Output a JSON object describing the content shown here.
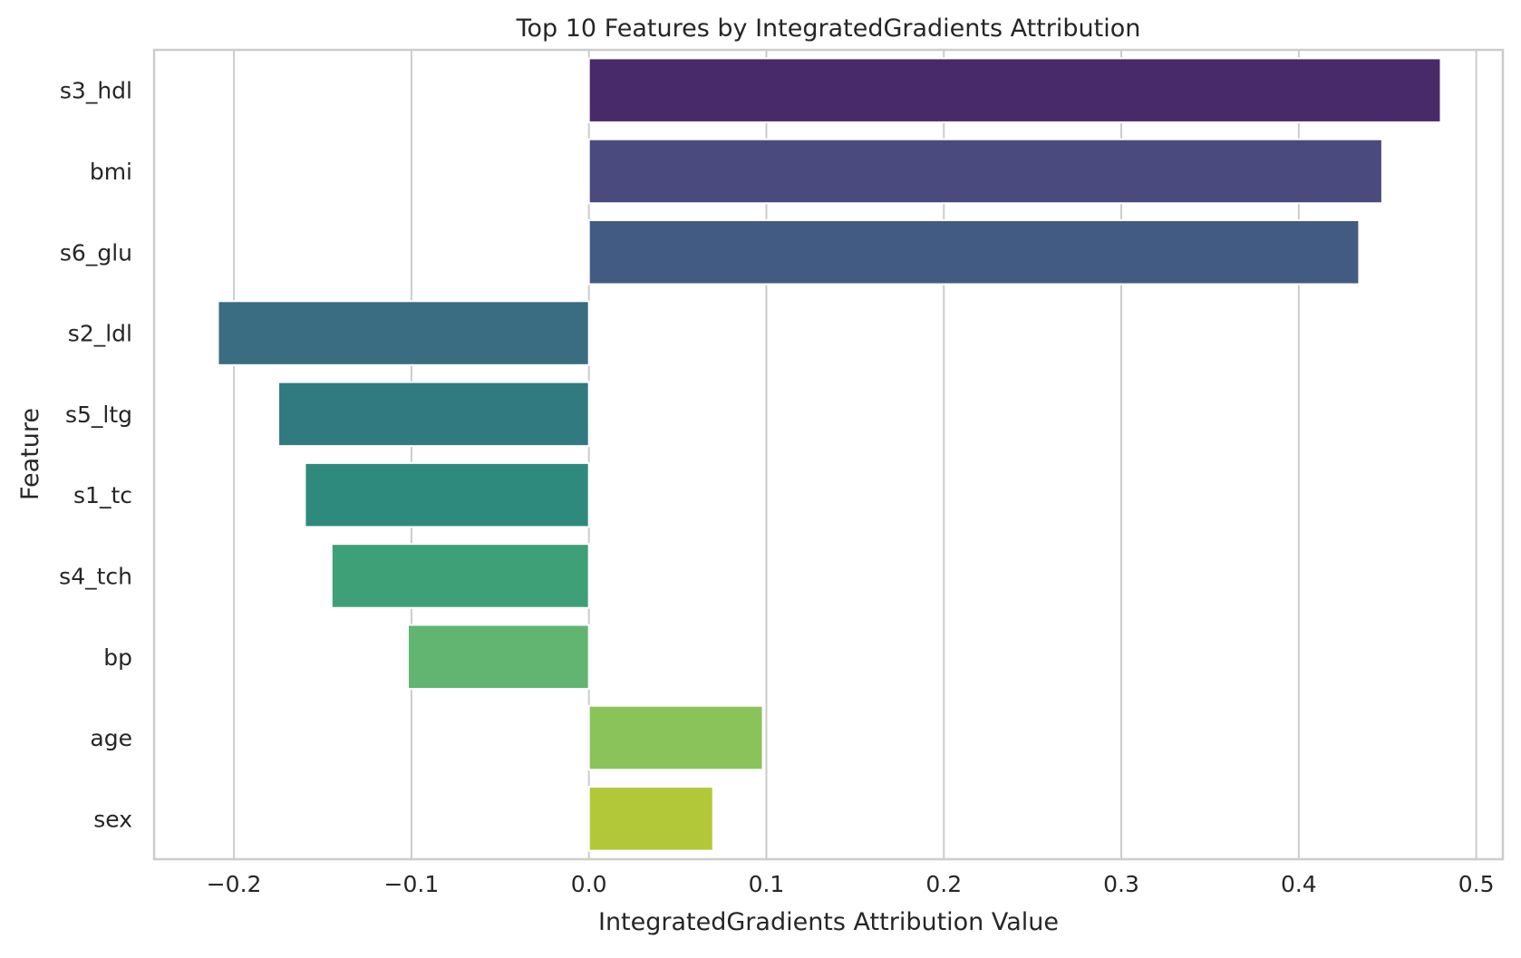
{
  "chart_data": {
    "type": "bar",
    "orientation": "horizontal",
    "title": "Top 10 Features by IntegratedGradients Attribution",
    "xlabel": "IntegratedGradients Attribution Value",
    "ylabel": "Feature",
    "xlim": [
      -0.245,
      0.515
    ],
    "xticks": [
      -0.2,
      -0.1,
      0.0,
      0.1,
      0.2,
      0.3,
      0.4,
      0.5
    ],
    "xtick_labels": [
      "−0.2",
      "−0.1",
      "0.0",
      "0.1",
      "0.2",
      "0.3",
      "0.4",
      "0.5"
    ],
    "grid": true,
    "categories": [
      "s3_hdl",
      "bmi",
      "s6_glu",
      "s2_ldl",
      "s5_ltg",
      "s1_tc",
      "s4_tch",
      "bp",
      "age",
      "sex"
    ],
    "values": [
      0.48,
      0.447,
      0.434,
      -0.209,
      -0.175,
      -0.16,
      -0.145,
      -0.102,
      0.098,
      0.07
    ],
    "colors": [
      "#482a6a",
      "#4a4a7e",
      "#425b82",
      "#3a6c82",
      "#307a80",
      "#2f8a7e",
      "#3da077",
      "#62b571",
      "#8ac35a",
      "#b2c839"
    ]
  }
}
